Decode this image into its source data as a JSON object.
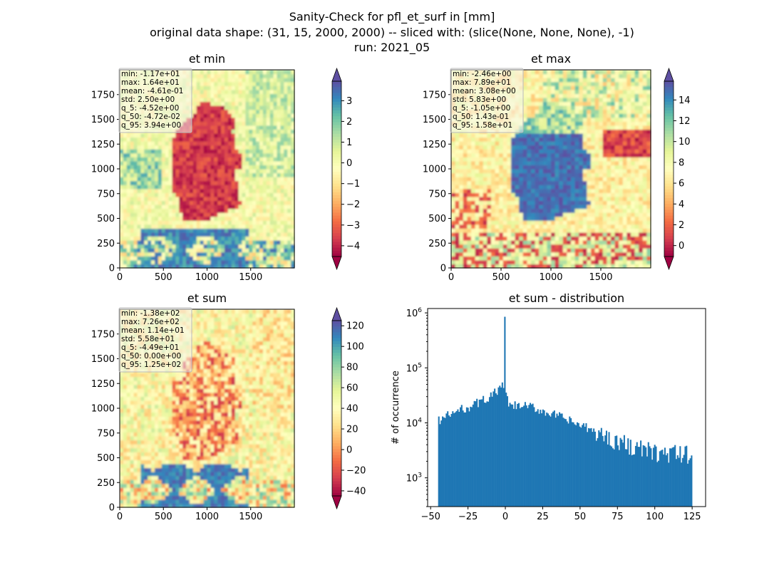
{
  "figure": {
    "suptitle_lines": [
      "Sanity-Check for pfl_et_surf in [mm]",
      "original data shape: (31, 15, 2000, 2000) -- sliced with: (slice(None, None, None), -1)",
      "run: 2021_05"
    ]
  },
  "colormap": {
    "name": "Spectral",
    "stops": [
      "#9e0142",
      "#d53e4f",
      "#f46d43",
      "#fdae61",
      "#fee08b",
      "#ffffbf",
      "#e6f598",
      "#abdda4",
      "#66c2a5",
      "#3288bd",
      "#5e4fa2"
    ]
  },
  "chart_data": [
    {
      "id": "et_min",
      "type": "heatmap",
      "title": "et min",
      "xlim": [
        0,
        2000
      ],
      "ylim": [
        0,
        2000
      ],
      "xticks": [
        0,
        500,
        1000,
        1500
      ],
      "yticks": [
        0,
        250,
        500,
        750,
        1000,
        1250,
        1500,
        1750
      ],
      "colorbar": {
        "min": -4.52,
        "max": 3.94,
        "ticks": [
          3,
          2,
          1,
          0,
          -1,
          -2,
          -3,
          -4
        ],
        "tick_labels": [
          "3",
          "2",
          "1",
          "0",
          "−1",
          "−2",
          "−3",
          "−4"
        ],
        "extend": "both"
      },
      "stats": [
        "min: -1.17e+01",
        "max: 1.64e+01",
        "mean: -4.61e-01",
        "std: 2.50e+00",
        "q_5: -4.52e+00",
        "q_50: -4.72e-02",
        "q_95: 3.94e+00"
      ]
    },
    {
      "id": "et_max",
      "type": "heatmap",
      "title": "et max",
      "xlim": [
        0,
        2000
      ],
      "ylim": [
        0,
        2000
      ],
      "xticks": [
        0,
        500,
        1000,
        1500
      ],
      "yticks": [
        0,
        250,
        500,
        750,
        1000,
        1250,
        1500,
        1750
      ],
      "colorbar": {
        "min": -1.05,
        "max": 15.8,
        "ticks": [
          14,
          12,
          10,
          8,
          6,
          4,
          2,
          0
        ],
        "tick_labels": [
          "14",
          "12",
          "10",
          "8",
          "6",
          "4",
          "2",
          "0"
        ],
        "extend": "both"
      },
      "stats": [
        "min: -2.46e+00",
        "max: 7.89e+01",
        "mean: 3.08e+00",
        "std: 5.83e+00",
        "q_5: -1.05e+00",
        "q_50: 1.43e-01",
        "q_95: 1.58e+01"
      ]
    },
    {
      "id": "et_sum",
      "type": "heatmap",
      "title": "et sum",
      "xlim": [
        0,
        2000
      ],
      "ylim": [
        0,
        2000
      ],
      "xticks": [
        0,
        500,
        1000,
        1500
      ],
      "yticks": [
        0,
        250,
        500,
        750,
        1000,
        1250,
        1500,
        1750
      ],
      "colorbar": {
        "min": -44.9,
        "max": 125,
        "ticks": [
          120,
          100,
          80,
          60,
          40,
          20,
          0,
          -20,
          -40
        ],
        "tick_labels": [
          "120",
          "100",
          "80",
          "60",
          "40",
          "20",
          "0",
          "−20",
          "−40"
        ],
        "extend": "both"
      },
      "stats": [
        "min: -1.38e+02",
        "max: 7.26e+02",
        "mean: 1.14e+01",
        "std: 5.58e+01",
        "q_5: -4.49e+01",
        "q_50: 0.00e+00",
        "q_95: 1.25e+02"
      ]
    },
    {
      "id": "et_sum_dist",
      "type": "bar",
      "title": "et sum - distribution",
      "ylabel": "# of occurrence",
      "yscale": "log",
      "xlim": [
        -52,
        134
      ],
      "ylim": [
        300,
        1200000
      ],
      "xticks": [
        -50,
        -25,
        0,
        25,
        50,
        75,
        100,
        125
      ],
      "xtick_labels": [
        "−50",
        "−25",
        "0",
        "25",
        "50",
        "75",
        "100",
        "125"
      ],
      "yticks": [
        1000,
        10000,
        100000,
        1000000
      ],
      "ytick_bases": [
        "10",
        "10",
        "10",
        "10"
      ],
      "ytick_exps": [
        "3",
        "4",
        "5",
        "6"
      ],
      "bar_color": "#1f77b4",
      "bins": [
        -45,
        125
      ],
      "anchors_x": [
        -45,
        -35,
        -20,
        -10,
        -2,
        -0.5,
        0,
        0.5,
        3,
        15,
        30,
        50,
        75,
        100,
        125
      ],
      "anchors_y": [
        11000,
        15000,
        22000,
        30000,
        45000,
        40000,
        850000,
        30000,
        20000,
        20000,
        15000,
        9000,
        4500,
        2800,
        2600
      ]
    }
  ]
}
